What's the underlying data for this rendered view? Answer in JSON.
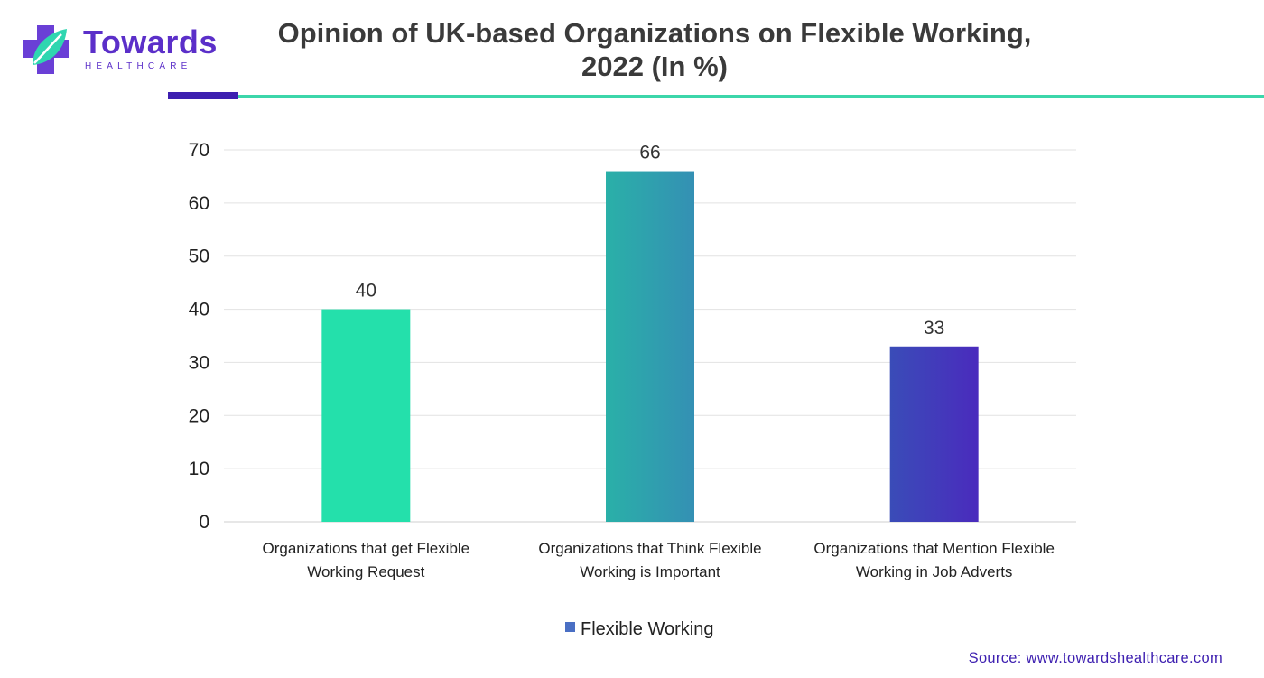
{
  "brand": {
    "name": "Towards",
    "subtitle": "HEALTHCARE",
    "colors": {
      "purple": "#5b2fc9",
      "teal": "#2fd6b0",
      "rule_dark": "#3d1fb0",
      "rule_light": "#3cd6aa"
    }
  },
  "title_lines": [
    "Opinion of UK-based Organizations on Flexible Working,",
    "2022 (In %)"
  ],
  "source": "Source: www.towardshealthcare.com",
  "chart_data": {
    "type": "bar",
    "title": "Opinion of UK-based Organizations on Flexible Working, 2022 (In %)",
    "categories": [
      [
        "Organizations that get Flexible",
        "Working Request"
      ],
      [
        "Organizations that Think Flexible",
        "Working is Important"
      ],
      [
        "Organizations that Mention Flexible",
        "Working in Job Adverts"
      ]
    ],
    "series": [
      {
        "name": "Flexible Working",
        "values": [
          40,
          66,
          33
        ],
        "legend_color": "#4a6fc4"
      }
    ],
    "bar_gradients": [
      [
        "#24e0ab",
        "#24e0ab"
      ],
      [
        "#2ab0a8",
        "#3490b4"
      ],
      [
        "#3a4cb8",
        "#4a2bbd"
      ]
    ],
    "ylim": [
      0,
      70
    ],
    "yticks": [
      0,
      10,
      20,
      30,
      40,
      50,
      60,
      70
    ],
    "grid": true,
    "data_labels": true,
    "legend_position": "bottom-center"
  }
}
